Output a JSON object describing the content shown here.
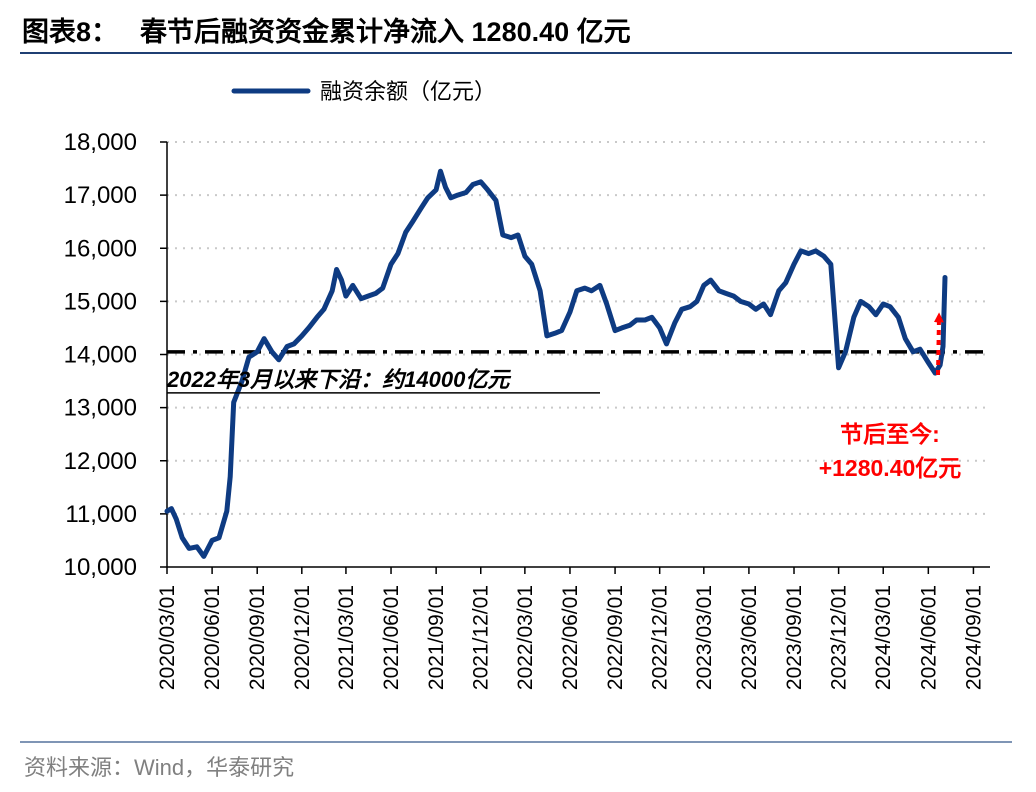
{
  "header": {
    "figure_label": "图表8：",
    "title": "春节后融资资金累计净流入 1280.40 亿元"
  },
  "source": "资料来源：Wind，华泰研究",
  "colors": {
    "series": "#0e3b82",
    "threshold": "#000000",
    "highlight": "#ff0000",
    "rule": "#1f3f73"
  },
  "chart_data": {
    "type": "line",
    "title": "春节后融资资金累计净流入 1280.40 亿元",
    "xlabel": "",
    "ylabel": "",
    "ylim": [
      10000,
      18000
    ],
    "yticks": [
      10000,
      11000,
      12000,
      13000,
      14000,
      15000,
      16000,
      17000,
      18000
    ],
    "ytick_labels": [
      "10,000",
      "11,000",
      "12,000",
      "13,000",
      "14,000",
      "15,000",
      "16,000",
      "17,000",
      "18,000"
    ],
    "xticks": [
      "2020/03/01",
      "2020/06/01",
      "2020/09/01",
      "2020/12/01",
      "2021/03/01",
      "2021/06/01",
      "2021/09/01",
      "2021/12/01",
      "2022/03/01",
      "2022/06/01",
      "2022/09/01",
      "2022/12/01",
      "2023/03/01",
      "2023/06/01",
      "2023/09/01",
      "2023/12/01",
      "2024/03/01",
      "2024/06/01",
      "2024/09/01"
    ],
    "grid": "horizontal dotted",
    "legend": "top-center",
    "series": [
      {
        "name": "融资余额（亿元）",
        "points": [
          [
            "2020/03/01",
            11050
          ],
          [
            "2020/03/10",
            11100
          ],
          [
            "2020/03/20",
            10900
          ],
          [
            "2020/04/01",
            10550
          ],
          [
            "2020/04/15",
            10350
          ],
          [
            "2020/05/01",
            10380
          ],
          [
            "2020/05/15",
            10200
          ],
          [
            "2020/06/01",
            10500
          ],
          [
            "2020/06/15",
            10550
          ],
          [
            "2020/07/01",
            11050
          ],
          [
            "2020/07/08",
            11700
          ],
          [
            "2020/07/15",
            13100
          ],
          [
            "2020/08/01",
            13500
          ],
          [
            "2020/08/15",
            13950
          ],
          [
            "2020/09/01",
            14050
          ],
          [
            "2020/09/15",
            14300
          ],
          [
            "2020/10/01",
            14050
          ],
          [
            "2020/10/15",
            13900
          ],
          [
            "2020/11/01",
            14150
          ],
          [
            "2020/11/15",
            14200
          ],
          [
            "2020/12/01",
            14350
          ],
          [
            "2020/12/15",
            14500
          ],
          [
            "2021/01/01",
            14700
          ],
          [
            "2021/01/15",
            14850
          ],
          [
            "2021/02/01",
            15200
          ],
          [
            "2021/02/10",
            15600
          ],
          [
            "2021/02/20",
            15400
          ],
          [
            "2021/03/01",
            15100
          ],
          [
            "2021/03/15",
            15300
          ],
          [
            "2021/04/01",
            15050
          ],
          [
            "2021/04/15",
            15100
          ],
          [
            "2021/05/01",
            15150
          ],
          [
            "2021/05/15",
            15250
          ],
          [
            "2021/06/01",
            15700
          ],
          [
            "2021/06/15",
            15900
          ],
          [
            "2021/07/01",
            16300
          ],
          [
            "2021/07/15",
            16500
          ],
          [
            "2021/08/01",
            16750
          ],
          [
            "2021/08/15",
            16950
          ],
          [
            "2021/09/01",
            17100
          ],
          [
            "2021/09/10",
            17450
          ],
          [
            "2021/09/20",
            17150
          ],
          [
            "2021/10/01",
            16950
          ],
          [
            "2021/10/15",
            17000
          ],
          [
            "2021/11/01",
            17050
          ],
          [
            "2021/11/15",
            17200
          ],
          [
            "2021/12/01",
            17250
          ],
          [
            "2021/12/15",
            17100
          ],
          [
            "2022/01/01",
            16900
          ],
          [
            "2022/01/15",
            16250
          ],
          [
            "2022/02/01",
            16200
          ],
          [
            "2022/02/15",
            16250
          ],
          [
            "2022/03/01",
            15850
          ],
          [
            "2022/03/15",
            15700
          ],
          [
            "2022/04/01",
            15200
          ],
          [
            "2022/04/15",
            14350
          ],
          [
            "2022/05/01",
            14400
          ],
          [
            "2022/05/15",
            14450
          ],
          [
            "2022/06/01",
            14800
          ],
          [
            "2022/06/15",
            15200
          ],
          [
            "2022/07/01",
            15250
          ],
          [
            "2022/07/15",
            15200
          ],
          [
            "2022/08/01",
            15300
          ],
          [
            "2022/08/15",
            14950
          ],
          [
            "2022/09/01",
            14450
          ],
          [
            "2022/09/15",
            14500
          ],
          [
            "2022/10/01",
            14550
          ],
          [
            "2022/10/15",
            14650
          ],
          [
            "2022/11/01",
            14650
          ],
          [
            "2022/11/15",
            14700
          ],
          [
            "2022/12/01",
            14500
          ],
          [
            "2022/12/15",
            14200
          ],
          [
            "2023/01/01",
            14600
          ],
          [
            "2023/01/15",
            14850
          ],
          [
            "2023/02/01",
            14900
          ],
          [
            "2023/02/15",
            15000
          ],
          [
            "2023/03/01",
            15300
          ],
          [
            "2023/03/15",
            15400
          ],
          [
            "2023/04/01",
            15200
          ],
          [
            "2023/04/15",
            15150
          ],
          [
            "2023/05/01",
            15100
          ],
          [
            "2023/05/15",
            15000
          ],
          [
            "2023/06/01",
            14950
          ],
          [
            "2023/06/15",
            14850
          ],
          [
            "2023/07/01",
            14950
          ],
          [
            "2023/07/15",
            14750
          ],
          [
            "2023/08/01",
            15200
          ],
          [
            "2023/08/15",
            15350
          ],
          [
            "2023/09/01",
            15700
          ],
          [
            "2023/09/15",
            15950
          ],
          [
            "2023/10/01",
            15900
          ],
          [
            "2023/10/15",
            15950
          ],
          [
            "2023/11/01",
            15850
          ],
          [
            "2023/11/15",
            15700
          ],
          [
            "2023/12/01",
            13750
          ],
          [
            "2023/12/15",
            14050
          ],
          [
            "2024/01/01",
            14700
          ],
          [
            "2024/01/15",
            15000
          ],
          [
            "2024/02/01",
            14900
          ],
          [
            "2024/02/15",
            14750
          ],
          [
            "2024/03/01",
            14950
          ],
          [
            "2024/03/15",
            14900
          ],
          [
            "2024/04/01",
            14700
          ],
          [
            "2024/04/15",
            14300
          ],
          [
            "2024/05/01",
            14050
          ],
          [
            "2024/05/15",
            14100
          ],
          [
            "2024/06/01",
            13850
          ],
          [
            "2024/06/15",
            13650
          ],
          [
            "2024/06/25",
            13800
          ],
          [
            "2024/07/01",
            14150
          ],
          [
            "2024/07/05",
            15450
          ]
        ]
      }
    ],
    "reference_lines": [
      {
        "y": 14050,
        "style": "dash-dot",
        "label": "2022年3月以来下沿：约14000亿元"
      }
    ],
    "annotations": [
      {
        "text_line1": "节后至今:",
        "text_line2": "+1280.40亿元",
        "color": "red",
        "arrow": "dotted red arrow pointing up-right toward last data point"
      }
    ]
  }
}
